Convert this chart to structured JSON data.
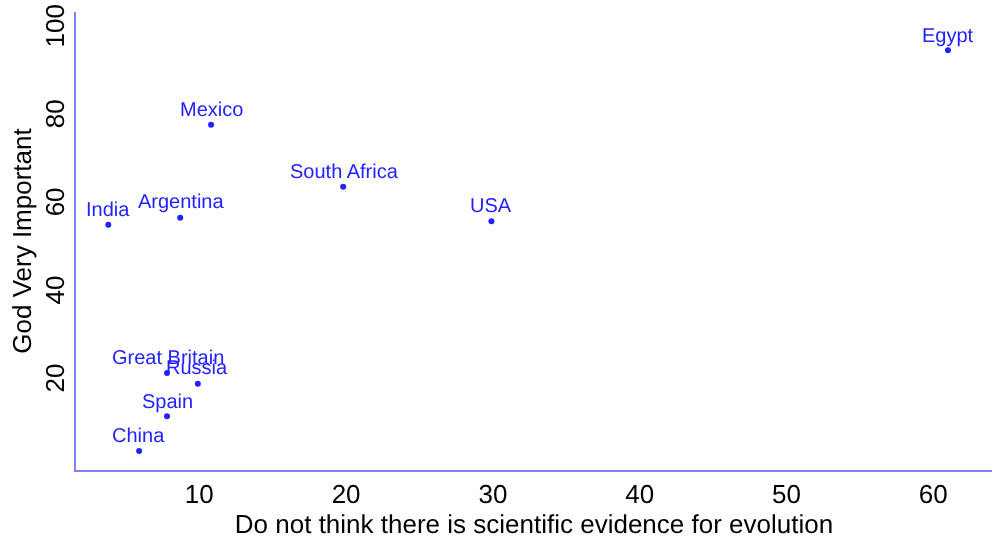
{
  "chart_data": {
    "type": "scatter",
    "xlabel": "Do not think there is scientific evidence for evolution",
    "ylabel": "God Very Important",
    "x": [
      61,
      10.8,
      19.8,
      29.9,
      3.8,
      8.7,
      7.8,
      9.9,
      7.8,
      5.9
    ],
    "values": [
      95.3,
      78.4,
      64.3,
      56.5,
      55.7,
      57.3,
      22,
      19.6,
      12.2,
      4.3
    ],
    "color": "#2222ff",
    "marker": "circle",
    "annotations": [
      {
        "text": "Egypt",
        "x": 61,
        "y": 95.3
      },
      {
        "text": "Mexico",
        "x": 10.8,
        "y": 78.4
      },
      {
        "text": "South Africa",
        "x": 19.8,
        "y": 64.3
      },
      {
        "text": "USA",
        "x": 29.9,
        "y": 56.5
      },
      {
        "text": "India",
        "x": 3.8,
        "y": 55.7
      },
      {
        "text": "Argentina",
        "x": 8.7,
        "y": 57.3
      },
      {
        "text": "Great Britain",
        "x": 7.8,
        "y": 22
      },
      {
        "text": "Russia",
        "x": 9.9,
        "y": 19.6
      },
      {
        "text": "Spain",
        "x": 7.8,
        "y": 12.2
      },
      {
        "text": "China",
        "x": 5.9,
        "y": 4.3
      }
    ],
    "xlim": [
      1.6,
      64
    ],
    "xticks": [
      10,
      20,
      30,
      40,
      50,
      60
    ],
    "ylim": [
      0,
      104
    ],
    "yticks": [
      20,
      40,
      60,
      80,
      100
    ]
  }
}
